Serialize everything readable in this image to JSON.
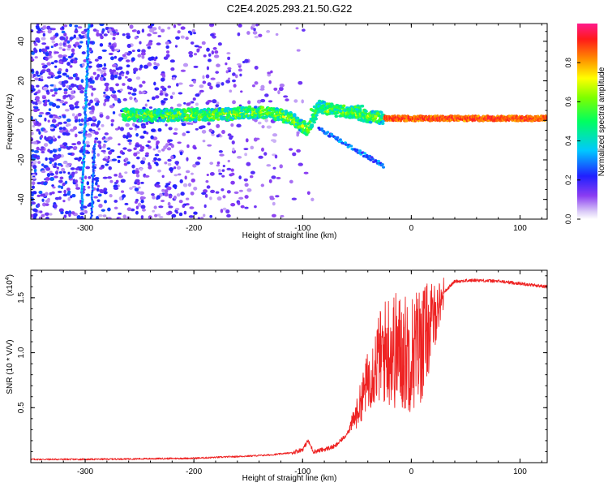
{
  "title": "C2E4.2025.293.21.50.G22",
  "chart_data": [
    {
      "type": "heatmap",
      "name": "spectrogram",
      "xlabel": "Height of straight line (km)",
      "ylabel": "Frequency (Hz)",
      "xlim": [
        -350,
        125
      ],
      "ylim": [
        -50,
        49
      ],
      "x_ticks": [
        -300,
        -200,
        -100,
        0,
        100
      ],
      "x_tick_labels": [
        "-300",
        "-200",
        "-100",
        "0",
        "100"
      ],
      "y_ticks": [
        -40,
        -20,
        0,
        20,
        40
      ],
      "y_tick_labels": [
        "-40",
        "-20",
        "0",
        "20",
        "40"
      ],
      "ridge": {
        "x": [
          -265,
          -240,
          -200,
          -170,
          -150,
          -130,
          -110,
          -95,
          -85,
          -70,
          -55,
          -40,
          -25,
          0,
          40,
          80,
          100,
          125
        ],
        "y": [
          3,
          2.5,
          3,
          3,
          4,
          4,
          1,
          -5,
          7,
          5,
          4,
          2,
          1,
          1,
          1,
          1,
          1,
          1
        ]
      },
      "colorbar": {
        "label": "Normalized spectral amplitude",
        "ticks": [
          0.0,
          0.2,
          0.4,
          0.6,
          0.8
        ],
        "tick_labels": [
          "0.0",
          "0.2",
          "0.4",
          "0.6",
          "0.8"
        ],
        "range": [
          0,
          1
        ]
      }
    },
    {
      "type": "line",
      "name": "snr",
      "xlabel": "Height of straight line (km)",
      "ylabel": "SNR (10 * V/V)",
      "y_multiplier": "(x10",
      "y_multiplier_exp": "4",
      "y_multiplier_close": ")",
      "xlim": [
        -350,
        125
      ],
      "ylim": [
        0,
        1.75
      ],
      "x_ticks": [
        -300,
        -200,
        -100,
        0,
        100
      ],
      "x_tick_labels": [
        "-300",
        "-200",
        "-100",
        "0",
        "100"
      ],
      "y_ticks": [
        0.5,
        1.0,
        1.5
      ],
      "y_tick_labels": [
        "0.5",
        "1.0",
        "1.5"
      ],
      "line_color": "#ee2222",
      "series": [
        {
          "name": "SNR",
          "x": [
            -350,
            -300,
            -250,
            -200,
            -175,
            -150,
            -130,
            -110,
            -100,
            -95,
            -90,
            -80,
            -70,
            -60,
            -50,
            -40,
            -30,
            -20,
            -10,
            0,
            10,
            20,
            30,
            40,
            60,
            80,
            100,
            125
          ],
          "y": [
            0.03,
            0.03,
            0.035,
            0.04,
            0.05,
            0.06,
            0.07,
            0.09,
            0.12,
            0.2,
            0.1,
            0.12,
            0.15,
            0.25,
            0.45,
            0.75,
            0.95,
            1.05,
            1.0,
            1.0,
            1.1,
            1.3,
            1.55,
            1.65,
            1.66,
            1.65,
            1.63,
            1.6
          ]
        }
      ]
    }
  ]
}
